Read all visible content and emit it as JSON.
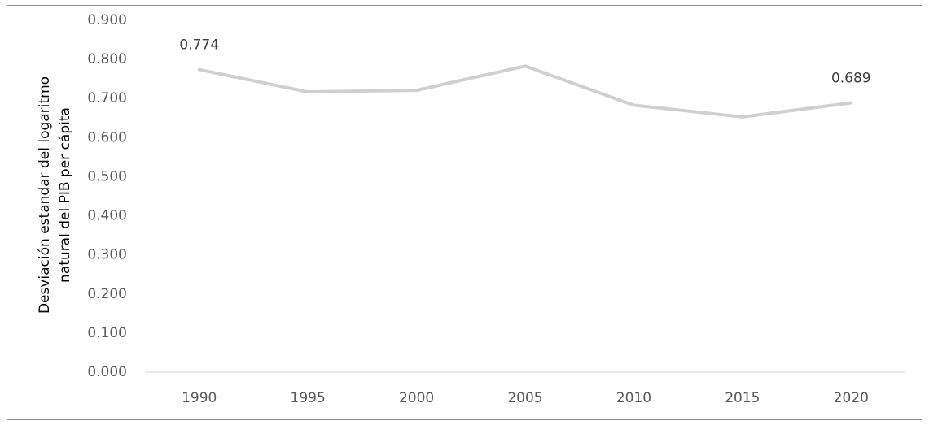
{
  "chart_data": {
    "type": "line",
    "categories": [
      "1990",
      "1995",
      "2000",
      "2005",
      "2010",
      "2015",
      "2020"
    ],
    "values": [
      0.774,
      0.717,
      0.721,
      0.783,
      0.683,
      0.653,
      0.689
    ],
    "value_labels": [
      "0.774",
      null,
      null,
      null,
      null,
      null,
      "0.689"
    ],
    "color": "#d0d0d0",
    "ylabel": [
      "Desviación estandar del logaritmo",
      "natural del PIB per cápita"
    ],
    "ylim": [
      0,
      0.9
    ],
    "yticks": [
      {
        "value": 0,
        "label": "0.000"
      },
      {
        "value": 0.1,
        "label": "0.100"
      },
      {
        "value": 0.2,
        "label": "0.200"
      },
      {
        "value": 0.3,
        "label": "0.300"
      },
      {
        "value": 0.4,
        "label": "0.400"
      },
      {
        "value": 0.5,
        "label": "0.500"
      },
      {
        "value": 0.6,
        "label": "0.600"
      },
      {
        "value": 0.7,
        "label": "0.700"
      },
      {
        "value": 0.8,
        "label": "0.800"
      },
      {
        "value": 0.9,
        "label": "0.900"
      }
    ],
    "grid": false
  }
}
